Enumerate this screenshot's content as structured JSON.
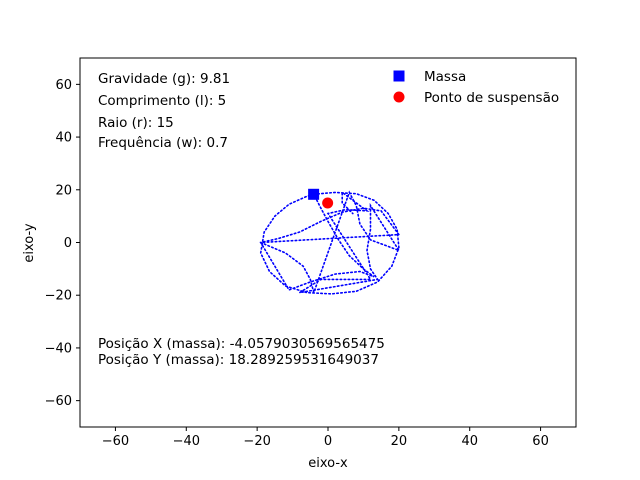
{
  "chart_data": {
    "type": "scatter",
    "xlabel": "eixo-x",
    "ylabel": "eixo-y",
    "xlim": [
      -70,
      70
    ],
    "ylim": [
      -70,
      70
    ],
    "xticks": [
      -60,
      -40,
      -20,
      0,
      20,
      40,
      60
    ],
    "yticks": [
      -60,
      -40,
      -20,
      0,
      20,
      40,
      60
    ],
    "grid": false,
    "legend_position": "top-right",
    "info_lines": [
      "Gravidade (g): 9.81",
      "Comprimento (l): 5",
      "Raio (r): 15",
      "Frequência (w): 0.7"
    ],
    "position_lines": [
      "Posição X (massa): -4.0579030569565475",
      "Posição Y (massa): 18.289259531649037"
    ],
    "series": [
      {
        "name": "Massa",
        "marker": "square",
        "color": "#0000ff",
        "x": [
          -4.06
        ],
        "y": [
          18.29
        ]
      },
      {
        "name": "Ponto de suspensão",
        "marker": "circle",
        "color": "#ff0000",
        "x": [
          -0.1
        ],
        "y": [
          15.0
        ]
      }
    ],
    "trajectory": {
      "color": "#0000ff",
      "style": "dotted",
      "points": [
        [
          -4,
          18.3
        ],
        [
          2,
          19
        ],
        [
          8,
          18.5
        ],
        [
          13,
          16
        ],
        [
          17,
          11
        ],
        [
          19.5,
          5
        ],
        [
          20,
          -2
        ],
        [
          18,
          -9
        ],
        [
          14,
          -15
        ],
        [
          8,
          -18.5
        ],
        [
          1,
          -19.5
        ],
        [
          -6,
          -19
        ],
        [
          -12,
          -16.5
        ],
        [
          -16.5,
          -11
        ],
        [
          -19,
          -4
        ],
        [
          -18,
          4
        ],
        [
          -15,
          10
        ],
        [
          -11,
          14.5
        ],
        [
          -6,
          17.5
        ],
        [
          -4,
          18.3
        ],
        [
          -2,
          13
        ],
        [
          0,
          8
        ],
        [
          3,
          1
        ],
        [
          6,
          -5
        ],
        [
          10,
          -10
        ],
        [
          13,
          -13
        ],
        [
          13,
          -13
        ],
        [
          9,
          -11
        ],
        [
          2,
          -12
        ],
        [
          -5,
          -15
        ],
        [
          -11,
          -18
        ],
        [
          -19,
          0
        ],
        [
          -14,
          1.5
        ],
        [
          -8,
          4
        ],
        [
          -2,
          8
        ],
        [
          4,
          11.5
        ],
        [
          10,
          13
        ],
        [
          15,
          12
        ],
        [
          20,
          3
        ],
        [
          -19,
          0
        ],
        [
          -12,
          -4
        ],
        [
          -7,
          -9
        ],
        [
          -5,
          -14
        ],
        [
          -4,
          -19
        ],
        [
          6,
          19
        ],
        [
          8,
          14
        ],
        [
          9,
          7
        ],
        [
          12,
          1
        ],
        [
          20,
          -3
        ],
        [
          12,
          14
        ],
        [
          12,
          5
        ],
        [
          11,
          -3
        ],
        [
          12,
          -10
        ],
        [
          14,
          -14
        ],
        [
          -8,
          -19
        ],
        [
          -2,
          -14
        ],
        [
          6,
          -14
        ],
        [
          12,
          -14
        ],
        [
          0,
          11
        ],
        [
          5,
          12.5
        ],
        [
          11,
          12
        ],
        [
          4,
          19
        ],
        [
          4,
          15
        ],
        [
          7,
          11
        ]
      ]
    }
  }
}
